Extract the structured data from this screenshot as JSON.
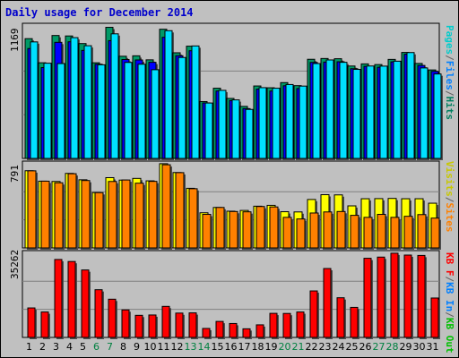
{
  "chart_data": {
    "type": "bar",
    "title": "Daily usage for December 2014",
    "categories": [
      "1",
      "2",
      "3",
      "4",
      "5",
      "6",
      "7",
      "8",
      "9",
      "10",
      "11",
      "12",
      "13",
      "14",
      "15",
      "16",
      "17",
      "18",
      "19",
      "20",
      "21",
      "22",
      "23",
      "24",
      "25",
      "26",
      "27",
      "28",
      "29",
      "30",
      "31"
    ],
    "weekend_days": [
      "6",
      "7",
      "13",
      "14",
      "20",
      "21",
      "27",
      "28"
    ],
    "panels": [
      {
        "id": "hits",
        "ymax_label": "1169",
        "ymax": 1169,
        "legend": [
          {
            "text": "Pages",
            "color": "#00cccc"
          },
          {
            "text": "/",
            "color": "#606060"
          },
          {
            "text": "Files",
            "color": "#0080ff"
          },
          {
            "text": "/",
            "color": "#606060"
          },
          {
            "text": "Hits",
            "color": "#008060"
          }
        ],
        "series": [
          {
            "name": "Hits",
            "color": "#009966",
            "values": [
              1068,
              853,
              1096,
              1092,
              1024,
              853,
              1169,
              911,
              915,
              879,
              1152,
              942,
              1001,
              507,
              626,
              535,
              464,
              646,
              630,
              676,
              649,
              884,
              891,
              889,
              824,
              843,
              837,
              883,
              945,
              847,
              789
            ]
          },
          {
            "name": "Files",
            "color": "#0000ff",
            "values": [
              980,
              810,
              1035,
              1040,
              963,
              840,
              1050,
              882,
              878,
              857,
              1080,
              916,
              960,
              495,
              601,
              516,
              444,
              618,
              601,
              648,
              623,
              856,
              859,
              862,
              800,
              821,
              813,
              861,
              929,
              829,
              776
            ]
          },
          {
            "name": "Pages",
            "color": "#00e0ff",
            "values": [
              1039,
              849,
              846,
              1077,
              1005,
              835,
              1111,
              856,
              840,
              791,
              1139,
              900,
              1003,
              494,
              607,
              522,
              437,
              631,
              626,
              659,
              645,
              846,
              878,
              857,
              794,
              824,
              823,
              867,
              944,
              807,
              753
            ]
          }
        ]
      },
      {
        "id": "visits",
        "ymax_label": "791",
        "ymax": 791,
        "legend": [
          {
            "text": "Visits",
            "color": "#c8c800"
          },
          {
            "text": "/",
            "color": "#606060"
          },
          {
            "text": "Sites",
            "color": "#ff8000"
          }
        ],
        "series": [
          {
            "name": "Visits",
            "color": "#ffff00",
            "values": [
              725,
              627,
              624,
              700,
              640,
              520,
              660,
              637,
              653,
              630,
              791,
              708,
              560,
              330,
              380,
              345,
              352,
              392,
              400,
              340,
              338,
              455,
              500,
              498,
              395,
              462,
              463,
              465,
              462,
              462,
              420
            ]
          },
          {
            "name": "Sites",
            "color": "#ff8000",
            "values": [
              724,
              627,
              612,
              697,
              633,
              519,
              624,
              638,
              608,
              625,
              781,
              707,
              556,
              315,
              380,
              342,
              339,
              389,
              385,
              287,
              272,
              328,
              338,
              342,
              306,
              287,
              315,
              287,
              297,
              313,
              280
            ]
          }
        ]
      },
      {
        "id": "kbytes",
        "ymax_label": "35262",
        "ymax": 35262,
        "legend": [
          {
            "text": "KB F",
            "color": "#ff0000"
          },
          {
            "text": "/",
            "color": "#606060"
          },
          {
            "text": "KB In",
            "color": "#0080ff"
          },
          {
            "text": "/",
            "color": "#606060"
          },
          {
            "text": "KB Out",
            "color": "#00c000"
          }
        ],
        "series": [
          {
            "name": "KB F",
            "color": "#ff0000",
            "values": [
              12347,
              10650,
              32640,
              31786,
              28244,
              19980,
              16000,
              11520,
              9250,
              9390,
              13000,
              10190,
              10275,
              3760,
              6700,
              5830,
              3610,
              5270,
              10080,
              10040,
              10650,
              19470,
              28850,
              16610,
              12580,
              33140,
              33630,
              35262,
              34480,
              34330,
              16500
            ]
          }
        ]
      }
    ]
  }
}
